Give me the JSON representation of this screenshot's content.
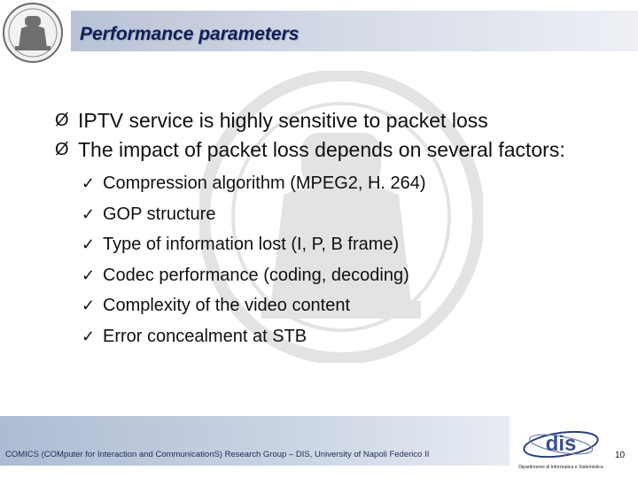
{
  "slide": {
    "title": "Performance parameters",
    "bullets": [
      {
        "text": "IPTV service is highly sensitive to packet loss"
      },
      {
        "text": "The impact of packet loss depends on several factors:",
        "sub": [
          "Compression algorithm (MPEG2, H. 264)",
          "GOP structure",
          "Type of information lost (I, P, B frame)",
          "Codec performance (coding, decoding)",
          "Complexity of the video content",
          "Error concealment at STB"
        ]
      }
    ],
    "bullet_marker": "Ø",
    "sub_marker": "✓"
  },
  "footer": {
    "text": "COMICS (COMputer for Interaction and CommunicationS) Research Group – DIS, University of Napoli Federico II",
    "dis_logo_text": "dis",
    "dis_caption": "Dipartimento di Informatica e Sistemistica",
    "page_number": "10"
  },
  "colors": {
    "title": "#0e1f5a",
    "title_bar": "#b9c2d6",
    "footer_bar": "#aebbd2"
  },
  "icons": {
    "logo": "university-seal-icon",
    "watermark": "university-seal-watermark-icon"
  }
}
